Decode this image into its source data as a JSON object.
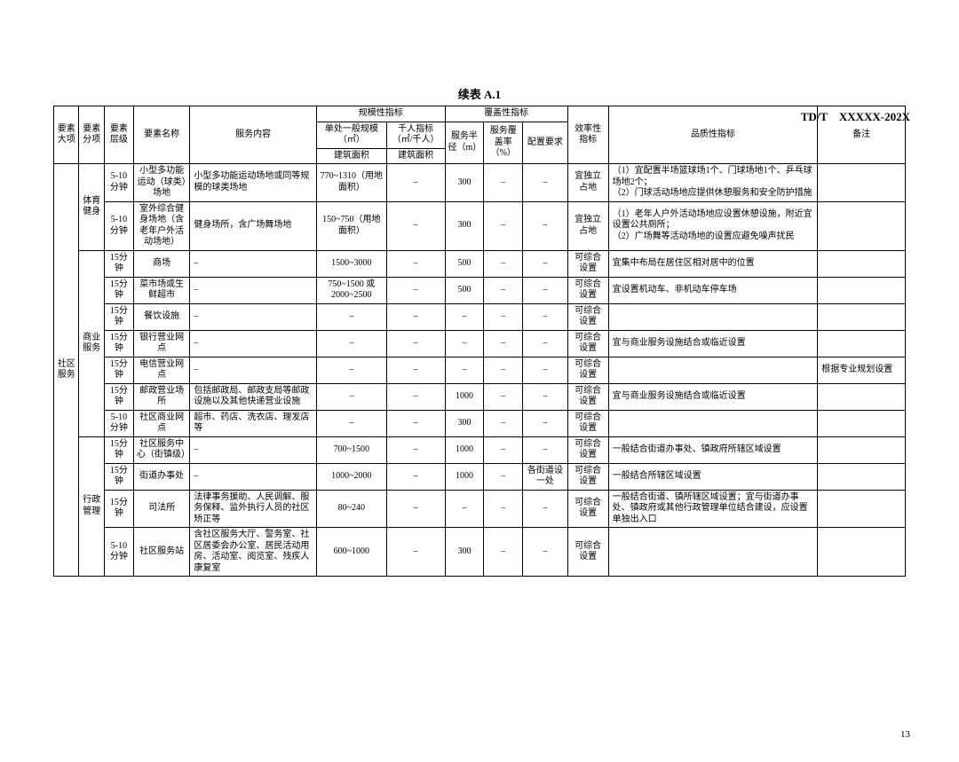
{
  "doc_id": "TD/T　XXXXX-202X",
  "title": "续表 A.1",
  "page_number": "13",
  "headers": {
    "major": "要素大项",
    "sub": "要素分项",
    "level": "要素层级",
    "name": "要素名称",
    "content": "服务内容",
    "scale_group": "规模性指标",
    "scale_unit": "单处一般规模（㎡）",
    "scale_sub": "建筑面积",
    "thousand": "千人指标（㎡/千人）",
    "thousand_sub": "建筑面积",
    "cover_group": "覆盖性指标",
    "radius": "服务半径（m）",
    "cover_rate": "服务覆盖率（%）",
    "config": "配置要求",
    "eff": "效率性指标",
    "quality": "品质性指标",
    "remark": "备注"
  },
  "major": "社区服务",
  "groups": [
    {
      "sub": "体育健身",
      "rows": [
        {
          "level": "5-10分钟",
          "name": "小型多功能运动（球类）场地",
          "content": "小型多功能运动场地或同等规模的球类场地",
          "scale": "770~1310（用地面积）",
          "thousand": "–",
          "radius": "300",
          "cover": "–",
          "config": "–",
          "eff": "宜独立占地",
          "quality": "（1）宜配置半场篮球场1个、门球场地1个、乒乓球场地2个；\n（2）门球活动场地应提供休憩服务和安全防护措施",
          "remark": ""
        },
        {
          "level": "5-10分钟",
          "name": "室外综合健身场地（含老年户外活动场地）",
          "content": "健身场所，含广场舞场地",
          "scale": "150~750（用地面积）",
          "thousand": "–",
          "radius": "300",
          "cover": "–",
          "config": "–",
          "eff": "宜独立占地",
          "quality": "（1）老年人户外活动场地应设置休憩设施，附近宜设置公共厕所；\n（2）广场舞等活动场地的设置应避免噪声扰民",
          "remark": ""
        }
      ]
    },
    {
      "sub": "商业服务",
      "rows": [
        {
          "level": "15分钟",
          "name": "商场",
          "content": "–",
          "scale": "1500~3000",
          "thousand": "–",
          "radius": "500",
          "cover": "–",
          "config": "–",
          "eff": "可综合设置",
          "quality": "宜集中布局在居住区相对居中的位置",
          "remark": ""
        },
        {
          "level": "15分钟",
          "name": "菜市场或生鲜超市",
          "content": "–",
          "scale": "750~1500 或 2000~2500",
          "thousand": "–",
          "radius": "500",
          "cover": "–",
          "config": "–",
          "eff": "可综合设置",
          "quality": "宜设置机动车、非机动车停车场",
          "remark": ""
        },
        {
          "level": "15分钟",
          "name": "餐饮设施",
          "content": "–",
          "scale": "–",
          "thousand": "–",
          "radius": "–",
          "cover": "–",
          "config": "–",
          "eff": "可综合设置",
          "quality": "",
          "remark": ""
        },
        {
          "level": "15分钟",
          "name": "银行营业网点",
          "content": "–",
          "scale": "–",
          "thousand": "–",
          "radius": "–",
          "cover": "–",
          "config": "–",
          "eff": "可综合设置",
          "quality": "宜与商业服务设施结合或临近设置",
          "remark": ""
        },
        {
          "level": "15分钟",
          "name": "电信营业网点",
          "content": "–",
          "scale": "–",
          "thousand": "–",
          "radius": "–",
          "cover": "–",
          "config": "–",
          "eff": "可综合设置",
          "quality": "",
          "remark": "根据专业规划设置"
        },
        {
          "level": "15分钟",
          "name": "邮政营业场所",
          "content": "包括邮政局、邮政支局等邮政设施以及其他快递营业设施",
          "scale": "–",
          "thousand": "–",
          "radius": "1000",
          "cover": "–",
          "config": "–",
          "eff": "可综合设置",
          "quality": "宜与商业服务设施结合或临近设置",
          "remark": ""
        },
        {
          "level": "5-10分钟",
          "name": "社区商业网点",
          "content": "超市、药店、洗衣店、理发店等",
          "scale": "–",
          "thousand": "–",
          "radius": "300",
          "cover": "–",
          "config": "–",
          "eff": "可综合设置",
          "quality": "",
          "remark": ""
        }
      ]
    },
    {
      "sub": "行政管理",
      "rows": [
        {
          "level": "15分钟",
          "name": "社区服务中心（街镇级）",
          "content": "–",
          "scale": "700~1500",
          "thousand": "–",
          "radius": "1000",
          "cover": "–",
          "config": "–",
          "eff": "可综合设置",
          "quality": "一般结合街道办事处、镇政府所辖区域设置",
          "remark": ""
        },
        {
          "level": "15分钟",
          "name": "街道办事处",
          "content": "–",
          "scale": "1000~2000",
          "thousand": "–",
          "radius": "1000",
          "cover": "–",
          "config": "各街道设一处",
          "eff": "可综合设置",
          "quality": "一般结合所辖区域设置",
          "remark": ""
        },
        {
          "level": "15分钟",
          "name": "司法所",
          "content": "法律事务援助、人民调解、服务保释、监外执行人员的社区矫正等",
          "scale": "80~240",
          "thousand": "–",
          "radius": "–",
          "cover": "–",
          "config": "–",
          "eff": "可综合设置",
          "quality": "一般结合街道、镇所辖区域设置；宜与街道办事处、镇政府或其他行政管理单位结合建设，应设置单独出入口",
          "remark": ""
        },
        {
          "level": "5-10分钟",
          "name": "社区服务站",
          "content": "含社区服务大厅、警务室、社区居委会办公室、居民活动用房、活动室、阅览室、残疾人康复室",
          "scale": "600~1000",
          "thousand": "–",
          "radius": "300",
          "cover": "–",
          "config": "–",
          "eff": "可综合设置",
          "quality": "",
          "remark": ""
        }
      ]
    }
  ]
}
